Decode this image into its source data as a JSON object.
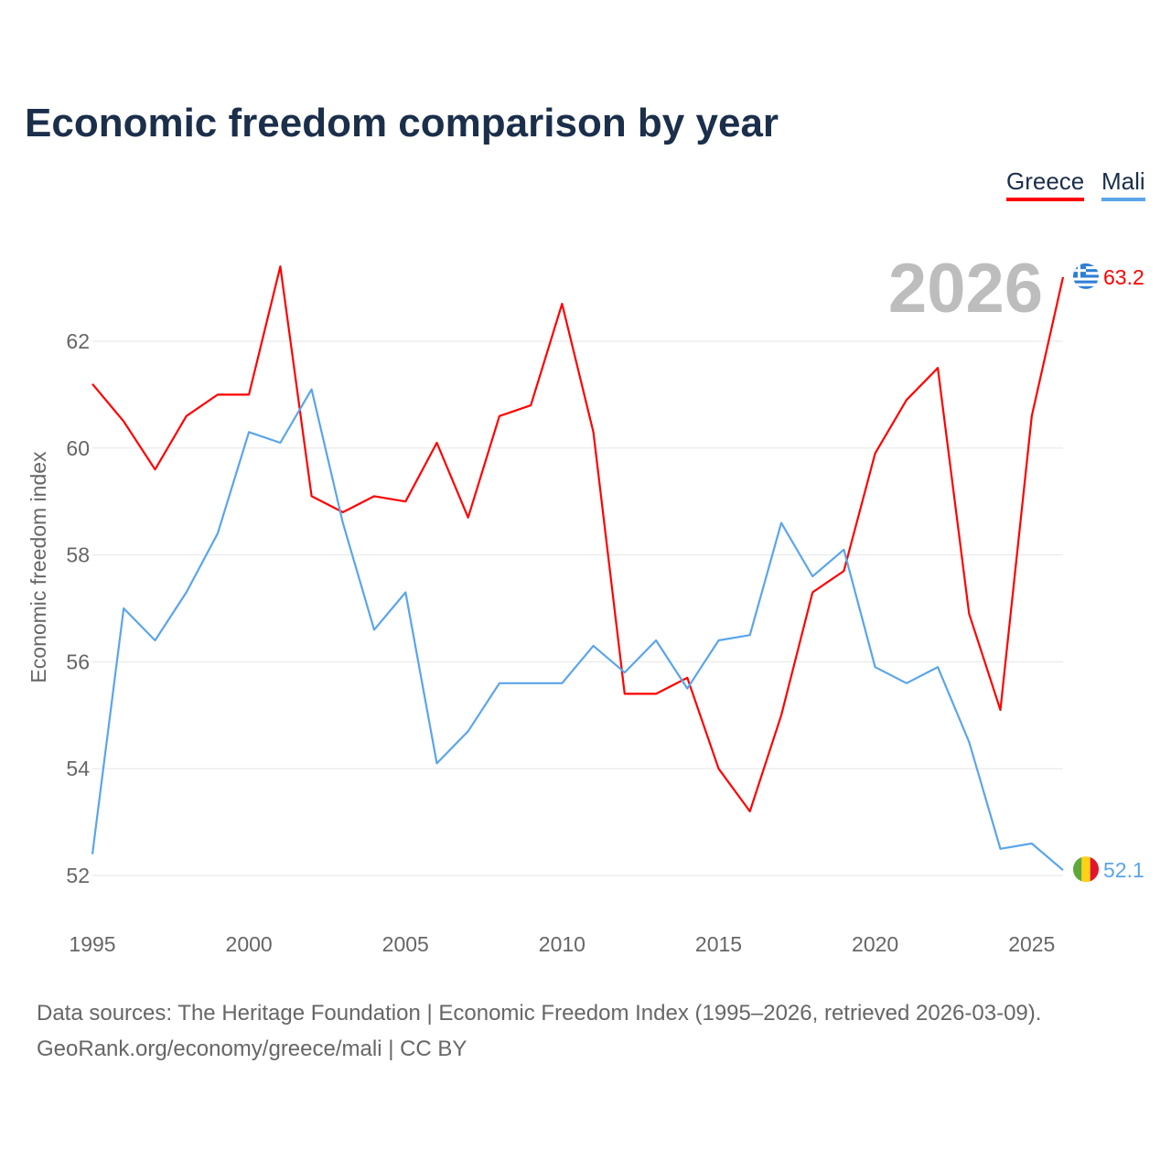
{
  "title": "Economic freedom comparison by year",
  "footer": {
    "line1": "Data sources: The Heritage Foundation | Economic Freedom Index (1995–2026, retrieved 2026-03-09).",
    "line2": "GeoRank.org/economy/greece/mali | CC BY"
  },
  "chart_data": {
    "type": "line",
    "title": "Economic freedom comparison by year",
    "xlabel": "",
    "ylabel": "Economic freedom index",
    "year_label": "2026",
    "xlim": [
      1995,
      2026
    ],
    "ylim": [
      52,
      63.5
    ],
    "x_ticks": [
      1995,
      2000,
      2005,
      2010,
      2015,
      2020,
      2025
    ],
    "y_ticks": [
      52,
      54,
      56,
      58,
      60,
      62
    ],
    "grid": true,
    "legend_position": "top-right",
    "x": [
      1995,
      1996,
      1997,
      1998,
      1999,
      2000,
      2001,
      2002,
      2003,
      2004,
      2005,
      2006,
      2007,
      2008,
      2009,
      2010,
      2011,
      2012,
      2013,
      2014,
      2015,
      2016,
      2017,
      2018,
      2019,
      2020,
      2021,
      2022,
      2023,
      2024,
      2025,
      2026
    ],
    "series": [
      {
        "name": "Greece",
        "color": "#ff0000",
        "end_label": "63.2",
        "flag": "greece-flag",
        "values": [
          61.2,
          60.5,
          59.6,
          60.6,
          61.0,
          61.0,
          63.4,
          59.1,
          58.8,
          59.1,
          59.0,
          60.1,
          58.7,
          60.6,
          60.8,
          62.7,
          60.3,
          55.4,
          55.4,
          55.7,
          54.0,
          53.2,
          55.0,
          57.3,
          57.7,
          59.9,
          60.9,
          61.5,
          56.9,
          55.1,
          60.6,
          63.2
        ]
      },
      {
        "name": "Mali",
        "color": "#5aa5ea",
        "end_label": "52.1",
        "flag": "mali-flag",
        "values": [
          52.4,
          57.0,
          56.4,
          57.3,
          58.4,
          60.3,
          60.1,
          61.1,
          58.6,
          56.6,
          57.3,
          54.1,
          54.7,
          55.6,
          55.6,
          55.6,
          56.3,
          55.8,
          56.4,
          55.5,
          56.4,
          56.5,
          58.6,
          57.6,
          58.1,
          55.9,
          55.6,
          55.9,
          54.5,
          52.5,
          52.6,
          52.1
        ]
      }
    ]
  }
}
